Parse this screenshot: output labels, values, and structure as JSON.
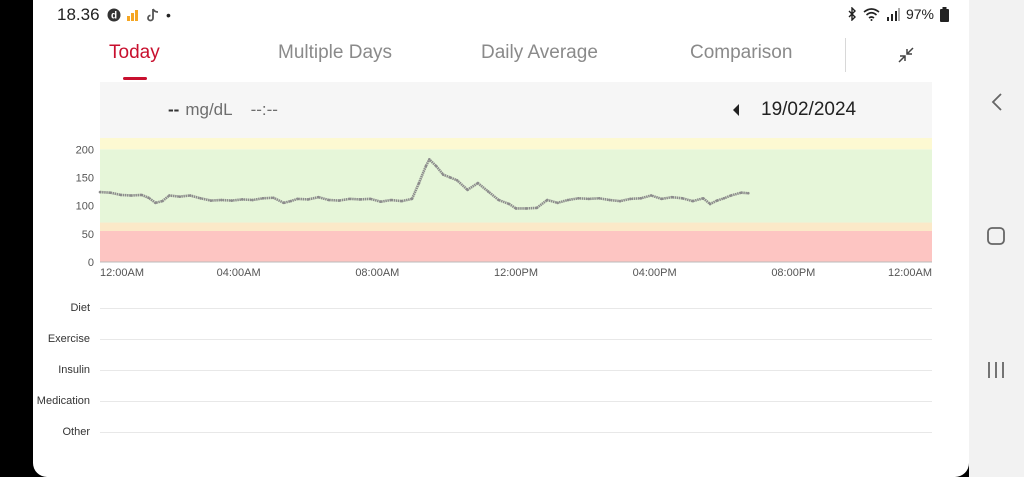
{
  "status_bar": {
    "time": "18.36",
    "battery": "97%",
    "icons_left": [
      "d-app-icon",
      "signal-bars-icon",
      "tiktok-icon"
    ],
    "icons_right": [
      "bluetooth-icon",
      "wifi-icon",
      "cell-signal-icon",
      "battery-icon"
    ]
  },
  "tabs": [
    {
      "label": "Today",
      "active": true
    },
    {
      "label": "Multiple Days",
      "active": false
    },
    {
      "label": "Daily Average",
      "active": false
    },
    {
      "label": "Comparison",
      "active": false
    }
  ],
  "readout": {
    "value": "--",
    "unit": "mg/dL",
    "time": "--:--"
  },
  "date": "19/02/2024",
  "chart_data": {
    "type": "line",
    "ylim": [
      0,
      220
    ],
    "yticks": [
      "200",
      "150",
      "100",
      "50",
      "0"
    ],
    "xticks": [
      "12:00AM",
      "04:00AM",
      "08:00AM",
      "12:00PM",
      "04:00PM",
      "08:00PM",
      "12:00AM"
    ],
    "xlim_hours": [
      0,
      24
    ],
    "target_bands": [
      {
        "from": 0,
        "to": 55,
        "color": "#fdc5c2"
      },
      {
        "from": 55,
        "to": 70,
        "color": "#fbe9c8"
      },
      {
        "from": 70,
        "to": 200,
        "color": "#e6f6d9"
      },
      {
        "from": 200,
        "to": 220,
        "color": "#fdf9d2"
      }
    ],
    "series": [
      {
        "color": "#8c8c8c",
        "x": [
          0,
          0.3,
          0.6,
          0.9,
          1.2,
          1.4,
          1.6,
          1.8,
          2.0,
          2.3,
          2.6,
          2.9,
          3.2,
          3.5,
          3.8,
          4.1,
          4.4,
          4.7,
          5.0,
          5.3,
          5.5,
          5.7,
          6.0,
          6.3,
          6.6,
          6.9,
          7.2,
          7.5,
          7.8,
          8.1,
          8.4,
          8.7,
          9.0,
          9.2,
          9.4,
          9.5,
          9.7,
          9.9,
          10.1,
          10.3,
          10.6,
          10.9,
          11.2,
          11.5,
          11.8,
          12.0,
          12.3,
          12.6,
          12.9,
          13.2,
          13.5,
          13.8,
          14.1,
          14.4,
          14.7,
          15.0,
          15.3,
          15.6,
          15.9,
          16.2,
          16.5,
          16.8,
          17.1,
          17.4,
          17.6,
          17.8,
          18.0,
          18.2,
          18.5,
          18.7
        ],
        "y": [
          124,
          123,
          119,
          118,
          119,
          114,
          105,
          108,
          118,
          116,
          118,
          113,
          109,
          110,
          109,
          111,
          110,
          113,
          114,
          105,
          108,
          112,
          111,
          115,
          110,
          109,
          112,
          111,
          112,
          107,
          110,
          108,
          112,
          140,
          170,
          182,
          170,
          155,
          150,
          145,
          128,
          140,
          125,
          110,
          103,
          95,
          95,
          96,
          110,
          105,
          110,
          113,
          112,
          113,
          110,
          108,
          112,
          113,
          118,
          112,
          115,
          113,
          108,
          113,
          103,
          109,
          113,
          118,
          123,
          122
        ]
      }
    ]
  },
  "event_rows": [
    "Diet",
    "Exercise",
    "Insulin",
    "Medication",
    "Other"
  ]
}
